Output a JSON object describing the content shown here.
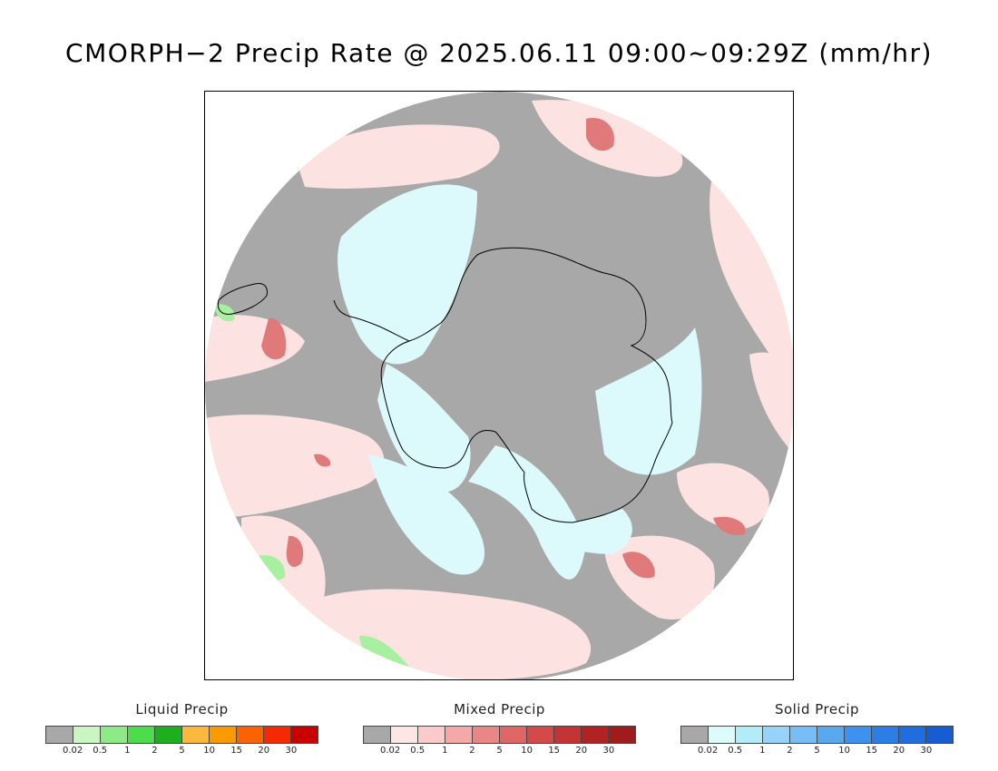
{
  "title": "CMORPH−2 Precip Rate @ 2025.06.11 09:00~09:29Z (mm/hr)",
  "map": {
    "projection": "south polar stereographic",
    "colors": {
      "no_precip": "#a8a8a8",
      "ocean_mixed_light": "#fde2e2",
      "mixed_mid": "#f4a8a8",
      "mixed_dark": "#e07a7a",
      "solid_light": "#dcf9fc",
      "liquid_light": "#a7f0a0",
      "coastline": "#000000"
    }
  },
  "legends": [
    {
      "title": "Liquid Precip",
      "colors": [
        "#a8a8a8",
        "#c8f7c0",
        "#8eea86",
        "#4cdc4c",
        "#1eaf1e",
        "#fbb83c",
        "#f99a00",
        "#f96400",
        "#f52a00",
        "#c80000"
      ],
      "ticks": [
        "0.02",
        "0.5",
        "1",
        "2",
        "5",
        "10",
        "15",
        "20",
        "30"
      ]
    },
    {
      "title": "Mixed Precip",
      "colors": [
        "#a8a8a8",
        "#fde6e6",
        "#fbcaca",
        "#f4a8a8",
        "#eb8686",
        "#e06666",
        "#d44a4a",
        "#c43434",
        "#b22222",
        "#a01c1c"
      ],
      "ticks": [
        "0.02",
        "0.5",
        "1",
        "2",
        "5",
        "10",
        "15",
        "20",
        "30"
      ]
    },
    {
      "title": "Solid Precip",
      "colors": [
        "#a8a8a8",
        "#dcfcfc",
        "#b2ecf8",
        "#96d2fa",
        "#78bef6",
        "#58a8f0",
        "#3c92ee",
        "#2a7ee6",
        "#1e6ee0",
        "#165cd2"
      ],
      "ticks": [
        "0.02",
        "0.5",
        "1",
        "2",
        "5",
        "10",
        "15",
        "20",
        "30"
      ]
    }
  ]
}
